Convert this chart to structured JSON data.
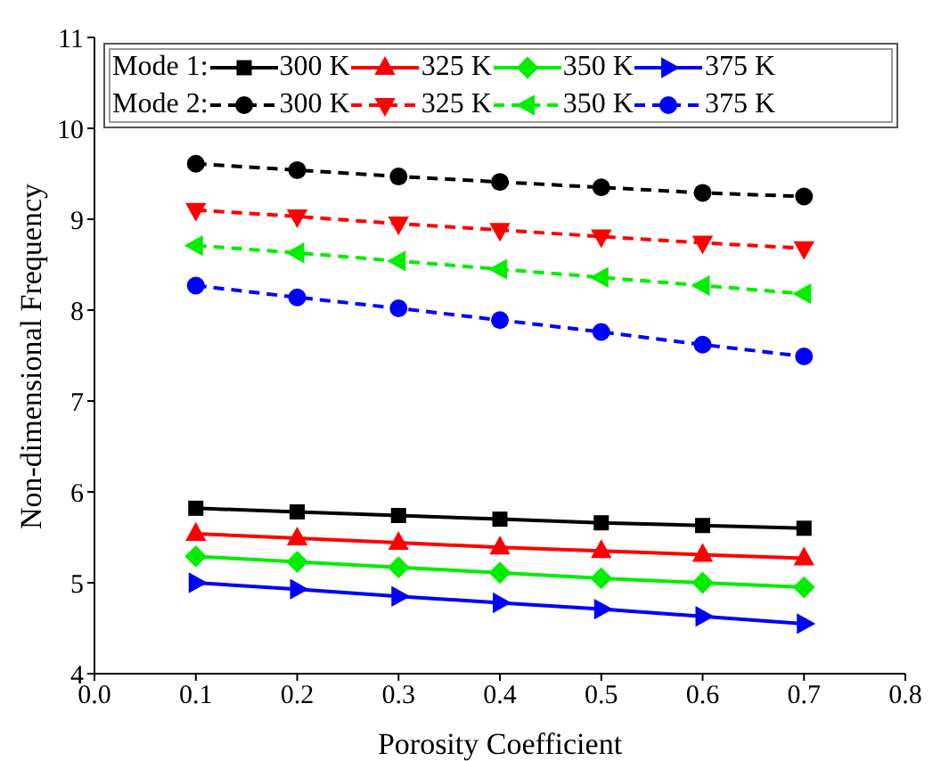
{
  "chart_data": {
    "type": "line",
    "xlabel": "Porosity Coefficient",
    "ylabel": "Non-dimensional Frequency",
    "x": [
      0.1,
      0.2,
      0.3,
      0.4,
      0.5,
      0.6,
      0.7
    ],
    "xlim": [
      0.0,
      0.8
    ],
    "xticks": [
      {
        "value": 0.0,
        "label": "0.0"
      },
      0.1,
      0.2,
      0.3,
      0.4,
      0.5,
      0.6,
      0.7,
      0.8
    ],
    "ylim": [
      4,
      11
    ],
    "yticks": [
      4,
      5,
      6,
      7,
      8,
      9,
      10,
      11
    ],
    "grid": false,
    "legend": "top",
    "annotations": [
      "Mode 1:",
      "Mode 2:"
    ],
    "series": [
      {
        "name": "300 K",
        "color": "#000000",
        "marker": "square",
        "line_style": "solid",
        "values": [
          5.82,
          5.78,
          5.74,
          5.7,
          5.66,
          5.63,
          5.6
        ]
      },
      {
        "name": "325 K",
        "color": "#ff0000",
        "marker": "triangle",
        "line_style": "solid",
        "values": [
          5.54,
          5.49,
          5.44,
          5.39,
          5.35,
          5.31,
          5.27
        ]
      },
      {
        "name": "350 K",
        "color": "#00ee00",
        "marker": "diamond",
        "line_style": "solid",
        "values": [
          5.29,
          5.23,
          5.17,
          5.11,
          5.05,
          5.0,
          4.95
        ]
      },
      {
        "name": "375 K",
        "color": "#0000ff",
        "marker": "triangle-right",
        "line_style": "solid",
        "values": [
          5.0,
          4.93,
          4.85,
          4.78,
          4.71,
          4.63,
          4.55
        ]
      },
      {
        "name": "300 K",
        "color": "#000000",
        "marker": "circle",
        "line_style": "dashed",
        "values": [
          9.61,
          9.54,
          9.47,
          9.41,
          9.35,
          9.29,
          9.25
        ]
      },
      {
        "name": "325 K",
        "color": "#ff0000",
        "marker": "triangle-down",
        "line_style": "dashed",
        "values": [
          9.1,
          9.03,
          8.95,
          8.88,
          8.81,
          8.74,
          8.68
        ]
      },
      {
        "name": "350 K",
        "color": "#00ee00",
        "marker": "triangle-left",
        "line_style": "dashed",
        "values": [
          8.71,
          8.63,
          8.54,
          8.45,
          8.36,
          8.27,
          8.18
        ]
      },
      {
        "name": "375 K",
        "color": "#0000ff",
        "marker": "circle",
        "line_style": "dashed",
        "values": [
          8.27,
          8.14,
          8.02,
          7.89,
          7.76,
          7.62,
          7.49
        ]
      }
    ]
  }
}
